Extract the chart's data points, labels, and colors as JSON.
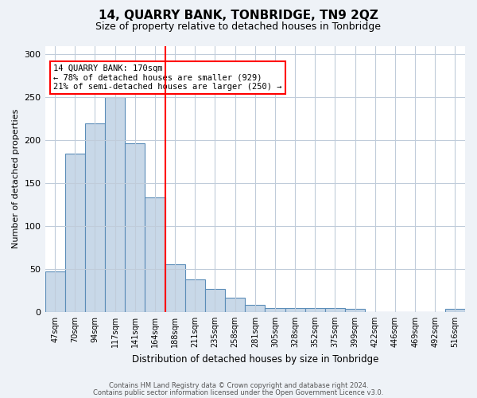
{
  "title": "14, QUARRY BANK, TONBRIDGE, TN9 2QZ",
  "subtitle": "Size of property relative to detached houses in Tonbridge",
  "xlabel": "Distribution of detached houses by size in Tonbridge",
  "ylabel": "Number of detached properties",
  "bar_labels": [
    "47sqm",
    "70sqm",
    "94sqm",
    "117sqm",
    "141sqm",
    "164sqm",
    "188sqm",
    "211sqm",
    "235sqm",
    "258sqm",
    "281sqm",
    "305sqm",
    "328sqm",
    "352sqm",
    "375sqm",
    "399sqm",
    "422sqm",
    "446sqm",
    "469sqm",
    "492sqm",
    "516sqm"
  ],
  "bar_values": [
    47,
    184,
    220,
    250,
    196,
    133,
    56,
    38,
    27,
    17,
    8,
    5,
    5,
    5,
    5,
    4,
    0,
    0,
    0,
    0,
    4
  ],
  "bar_color": "#c8d8e8",
  "bar_edge_color": "#5b8db8",
  "vline_pos": 5.5,
  "vline_color": "red",
  "annotation_text": "14 QUARRY BANK: 170sqm\n← 78% of detached houses are smaller (929)\n21% of semi-detached houses are larger (250) →",
  "ylim": [
    0,
    310
  ],
  "yticks": [
    0,
    50,
    100,
    150,
    200,
    250,
    300
  ],
  "footer1": "Contains HM Land Registry data © Crown copyright and database right 2024.",
  "footer2": "Contains public sector information licensed under the Open Government Licence v3.0.",
  "background_color": "#eef2f7",
  "plot_bg_color": "#ffffff",
  "grid_color": "#c0ccda"
}
